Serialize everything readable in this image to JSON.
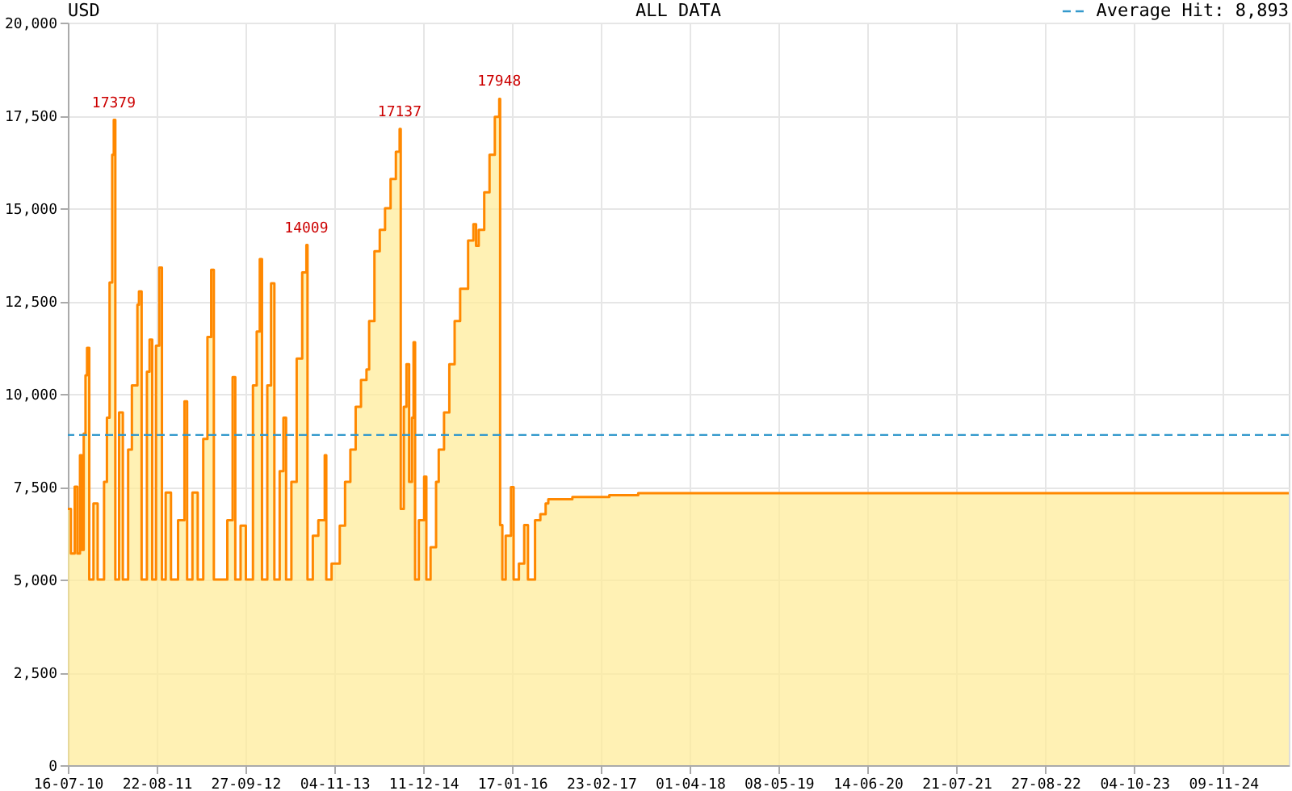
{
  "chart_data": {
    "type": "area",
    "title": "USD",
    "subtitle": "ALL DATA",
    "x": [
      "2010-07-16",
      "2010-07-30",
      "2010-08-16",
      "2010-08-28",
      "2010-09-09",
      "2010-09-17",
      "2010-09-26",
      "2010-10-04",
      "2010-10-11",
      "2010-10-21",
      "2010-11-09",
      "2010-11-28",
      "2010-12-27",
      "2011-01-09",
      "2011-01-21",
      "2011-02-02",
      "2011-02-09",
      "2011-02-16",
      "2011-03-05",
      "2011-03-22",
      "2011-04-15",
      "2011-05-02",
      "2011-05-27",
      "2011-06-03",
      "2011-06-15",
      "2011-07-09",
      "2011-07-21",
      "2011-08-02",
      "2011-08-19",
      "2011-09-03",
      "2011-09-15",
      "2011-10-02",
      "2011-10-26",
      "2011-11-27",
      "2011-12-26",
      "2012-01-07",
      "2012-01-31",
      "2012-02-24",
      "2012-03-20",
      "2012-04-08",
      "2012-04-25",
      "2012-05-07",
      "2012-06-08",
      "2012-07-07",
      "2012-07-31",
      "2012-08-12",
      "2012-09-05",
      "2012-09-29",
      "2012-10-31",
      "2012-11-17",
      "2012-12-01",
      "2012-12-11",
      "2013-01-04",
      "2013-01-21",
      "2013-02-05",
      "2013-03-01",
      "2013-03-18",
      "2013-03-30",
      "2013-04-23",
      "2013-05-17",
      "2013-06-11",
      "2013-06-30",
      "2013-07-05",
      "2013-07-29",
      "2013-08-23",
      "2013-09-21",
      "2013-09-28",
      "2013-10-22",
      "2013-11-28",
      "2013-12-22",
      "2014-01-15",
      "2014-02-08",
      "2014-03-04",
      "2014-03-29",
      "2014-04-10",
      "2014-05-04",
      "2014-05-28",
      "2014-06-21",
      "2014-07-16",
      "2014-08-09",
      "2014-08-26",
      "2014-08-31",
      "2014-09-14",
      "2014-09-26",
      "2014-10-08",
      "2014-10-21",
      "2014-10-28",
      "2014-11-04",
      "2014-11-21",
      "2014-12-15",
      "2014-12-25",
      "2015-01-13",
      "2015-02-07",
      "2015-02-19",
      "2015-03-15",
      "2015-04-08",
      "2015-05-02",
      "2015-05-27",
      "2015-07-02",
      "2015-07-26",
      "2015-08-07",
      "2015-08-19",
      "2015-09-13",
      "2015-10-07",
      "2015-10-31",
      "2015-11-20",
      "2015-11-24",
      "2015-12-04",
      "2015-12-19",
      "2016-01-12",
      "2016-01-24",
      "2016-02-17",
      "2016-03-12",
      "2016-03-29",
      "2016-04-30",
      "2016-05-24",
      "2016-06-17",
      "2016-06-29",
      "2016-10-16",
      "2017-04-01",
      "2017-08-10",
      "2025-09-02"
    ],
    "series": [
      {
        "color": "#ff8800",
        "values": [
          6900,
          5700,
          7500,
          5700,
          8350,
          5800,
          8930,
          10500,
          11240,
          5000,
          7050,
          5000,
          7630,
          9360,
          13000,
          16440,
          17379,
          5000,
          9500,
          5000,
          8500,
          10230,
          12400,
          12760,
          5000,
          10600,
          11460,
          5000,
          11300,
          13400,
          5000,
          7340,
          5000,
          6600,
          9800,
          5000,
          7340,
          5000,
          8790,
          11530,
          13340,
          5000,
          5000,
          6600,
          10450,
          5000,
          6450,
          5000,
          10230,
          11680,
          13630,
          5000,
          10230,
          12980,
          5000,
          7920,
          9360,
          5000,
          7630,
          10950,
          13270,
          14009,
          5000,
          6180,
          6600,
          8350,
          5000,
          5430,
          6450,
          7630,
          8500,
          9650,
          10375,
          10660,
          11960,
          13840,
          14420,
          15000,
          15790,
          16520,
          17137,
          6900,
          9650,
          10800,
          7630,
          9360,
          11390,
          5000,
          6600,
          7770,
          5000,
          5870,
          7630,
          8500,
          9500,
          10800,
          11960,
          12830,
          14130,
          14570,
          13990,
          14420,
          15430,
          16440,
          17460,
          17948,
          6470,
          5000,
          6180,
          7490,
          5000,
          5430,
          6470,
          5000,
          6600,
          6760,
          7050,
          7165,
          7225,
          7270,
          7325,
          7325
        ]
      }
    ],
    "xlim": [
      "2010-07-16",
      "2025-09-02"
    ],
    "xticks": [
      {
        "value": "2010-07-16",
        "label": "16-07-10"
      },
      {
        "value": "2011-08-22",
        "label": "22-08-11"
      },
      {
        "value": "2012-09-27",
        "label": "27-09-12"
      },
      {
        "value": "2013-11-04",
        "label": "04-11-13"
      },
      {
        "value": "2014-12-11",
        "label": "11-12-14"
      },
      {
        "value": "2016-01-17",
        "label": "17-01-16"
      },
      {
        "value": "2017-02-23",
        "label": "23-02-17"
      },
      {
        "value": "2018-04-01",
        "label": "01-04-18"
      },
      {
        "value": "2019-05-08",
        "label": "08-05-19"
      },
      {
        "value": "2020-06-14",
        "label": "14-06-20"
      },
      {
        "value": "2021-07-21",
        "label": "21-07-21"
      },
      {
        "value": "2022-08-27",
        "label": "27-08-22"
      },
      {
        "value": "2023-10-04",
        "label": "04-10-23"
      },
      {
        "value": "2024-11-09",
        "label": "09-11-24"
      }
    ],
    "ylim": [
      0,
      20000
    ],
    "yticks": [
      {
        "value": 0,
        "label": "0"
      },
      {
        "value": 2500,
        "label": "2,500"
      },
      {
        "value": 5000,
        "label": "5,000"
      },
      {
        "value": 7500,
        "label": "7,500"
      },
      {
        "value": 10000,
        "label": "10,000"
      },
      {
        "value": 12500,
        "label": "12,500"
      },
      {
        "value": 15000,
        "label": "15,000"
      },
      {
        "value": 17500,
        "label": "17,500"
      },
      {
        "value": 20000,
        "label": "20,000"
      }
    ],
    "grid": true,
    "ref_lines": [
      {
        "axis": "y",
        "value": 8893,
        "label": "Average Hit: 8,893",
        "color": "#3399cc",
        "line_style": "dashed"
      }
    ],
    "annotations": [
      {
        "text": "17379",
        "x": "2011-02-09",
        "y": 17379
      },
      {
        "text": "14009",
        "x": "2013-06-30",
        "y": 14009
      },
      {
        "text": "17137",
        "x": "2014-08-26",
        "y": 17137
      },
      {
        "text": "17948",
        "x": "2015-11-20",
        "y": 17948
      }
    ]
  }
}
